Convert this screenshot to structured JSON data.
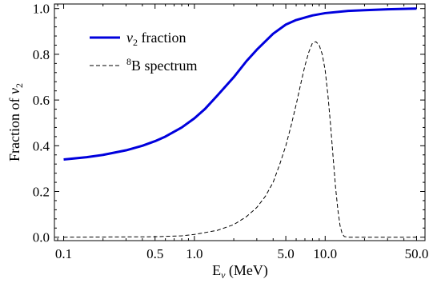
{
  "chart_data": {
    "type": "line",
    "title": "",
    "xscale": "log",
    "xlim": [
      0.085,
      58
    ],
    "ylim": [
      -0.015,
      1.02
    ],
    "x_ticks": [
      0.1,
      0.5,
      1.0,
      5.0,
      10.0,
      50.0
    ],
    "x_tick_labels": [
      "0.1",
      "0.5",
      "1.0",
      "5.0",
      "10.0",
      "50.0"
    ],
    "y_ticks": [
      0.0,
      0.2,
      0.4,
      0.6,
      0.8,
      1.0
    ],
    "y_tick_labels": [
      "0.0",
      "0.2",
      "0.4",
      "0.6",
      "0.8",
      "1.0"
    ],
    "xlabel": {
      "main": "E",
      "sub": "ν",
      "rest": " (MeV)"
    },
    "ylabel": {
      "main": "Fraction of ",
      "var": "ν",
      "sub": "2"
    },
    "grid": false,
    "legend_position": "top-left",
    "series": [
      {
        "name": "ν2 fraction",
        "legend_label": {
          "var": "ν",
          "sub": "2",
          "rest": " fraction"
        },
        "color": "#0000dd",
        "style": "solid",
        "x": [
          0.1,
          0.15,
          0.2,
          0.3,
          0.4,
          0.5,
          0.6,
          0.8,
          1.0,
          1.2,
          1.5,
          2.0,
          2.5,
          3.0,
          4.0,
          5.0,
          6.0,
          8.0,
          10.0,
          15.0,
          20.0,
          30.0,
          50.0
        ],
        "y": [
          0.34,
          0.35,
          0.36,
          0.38,
          0.4,
          0.42,
          0.44,
          0.48,
          0.52,
          0.56,
          0.62,
          0.7,
          0.77,
          0.82,
          0.89,
          0.93,
          0.95,
          0.97,
          0.98,
          0.99,
          0.993,
          0.997,
          1.0
        ]
      },
      {
        "name": "8B spectrum",
        "legend_label": {
          "sup": "8",
          "rest": "B spectrum"
        },
        "color": "#000000",
        "style": "dashed",
        "x": [
          0.1,
          0.5,
          0.8,
          1.0,
          1.5,
          2.0,
          2.5,
          3.0,
          3.5,
          4.0,
          4.5,
          5.0,
          5.5,
          6.0,
          6.5,
          7.0,
          7.5,
          8.0,
          8.5,
          9.0,
          9.5,
          10.0,
          10.5,
          11.0,
          11.5,
          12.0,
          12.5,
          13.0,
          13.5,
          14.0,
          15.0,
          20.0,
          50.0
        ],
        "y": [
          0.0,
          0.002,
          0.006,
          0.012,
          0.03,
          0.055,
          0.09,
          0.13,
          0.18,
          0.24,
          0.32,
          0.4,
          0.49,
          0.58,
          0.67,
          0.75,
          0.81,
          0.85,
          0.855,
          0.84,
          0.8,
          0.73,
          0.62,
          0.49,
          0.35,
          0.22,
          0.12,
          0.05,
          0.015,
          0.003,
          0.0,
          0.0,
          0.0
        ]
      }
    ]
  }
}
